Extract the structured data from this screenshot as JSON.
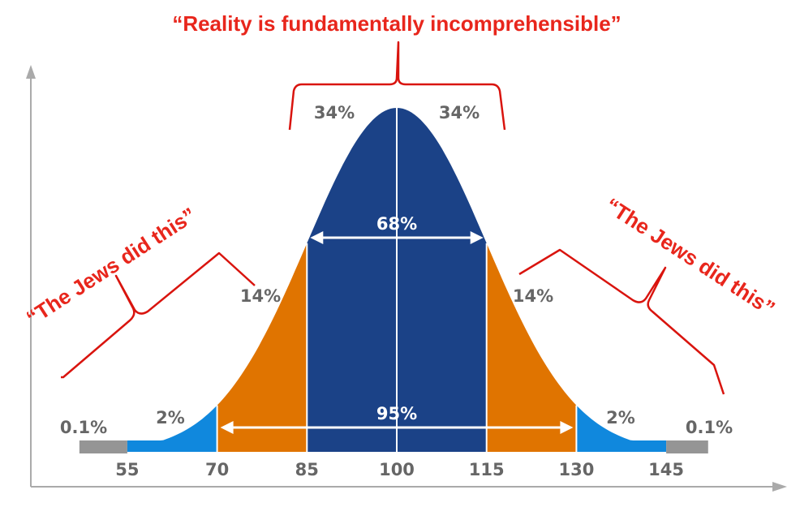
{
  "chart_data": {
    "type": "area",
    "distribution": {
      "mean": 100,
      "sd": 15
    },
    "x_ticks": [
      55,
      70,
      85,
      100,
      115,
      130,
      145
    ],
    "segments": [
      {
        "from": 40,
        "to": 55,
        "label": "0.1%",
        "color": "#959595"
      },
      {
        "from": 55,
        "to": 70,
        "label": "2%",
        "color": "#1088dd"
      },
      {
        "from": 70,
        "to": 85,
        "label": "14%",
        "color": "#e07400"
      },
      {
        "from": 85,
        "to": 100,
        "label": "34%",
        "color": "#1b4287"
      },
      {
        "from": 100,
        "to": 115,
        "label": "34%",
        "color": "#1b4287"
      },
      {
        "from": 115,
        "to": 130,
        "label": "14%",
        "color": "#e07400"
      },
      {
        "from": 130,
        "to": 145,
        "label": "2%",
        "color": "#1088dd"
      },
      {
        "from": 145,
        "to": 160,
        "label": "0.1%",
        "color": "#959595"
      }
    ],
    "ranges": [
      {
        "from": 85,
        "to": 115,
        "label": "68%"
      },
      {
        "from": 70,
        "to": 130,
        "label": "95%"
      }
    ],
    "annotations": {
      "top": "“Reality is fundamentally incomprehensible”",
      "left": "“The Jews did this”",
      "right": "“The Jews did this”"
    },
    "axis_color": "#aaaaaa",
    "annotation_color": "#e8261c"
  }
}
